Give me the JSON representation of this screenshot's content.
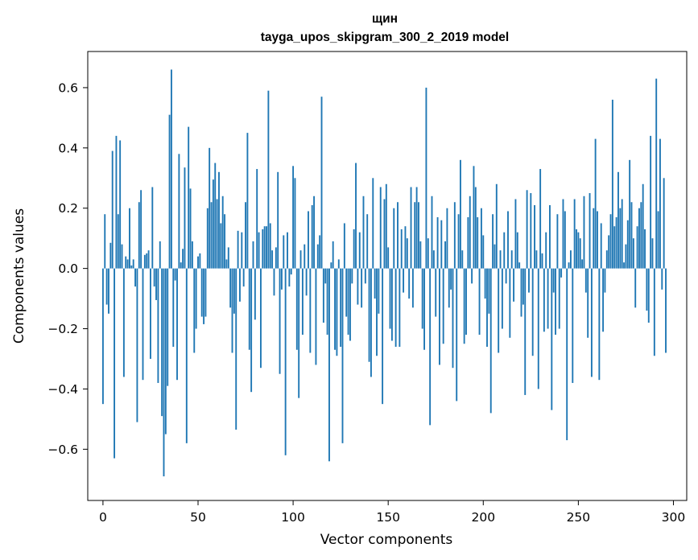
{
  "chart_data": {
    "type": "bar",
    "title": "щин",
    "subtitle": "tayga_upos_skipgram_300_2_2019 model",
    "xlabel": "Vector components",
    "ylabel": "Components values",
    "xlim": [
      -8,
      307
    ],
    "ylim": [
      -0.77,
      0.72
    ],
    "xticks": [
      0,
      50,
      100,
      150,
      200,
      250,
      300
    ],
    "xtick_labels": [
      "0",
      "50",
      "100",
      "150",
      "200",
      "250",
      "300"
    ],
    "yticks": [
      -0.6,
      -0.4,
      -0.2,
      0.0,
      0.2,
      0.4,
      0.6
    ],
    "ytick_labels": [
      "−0.6",
      "−0.4",
      "−0.2",
      "0.0",
      "0.2",
      "0.4",
      "0.6"
    ],
    "bar_color": "#1f77b4",
    "values": [
      -0.45,
      0.18,
      -0.12,
      -0.15,
      0.085,
      0.39,
      -0.63,
      0.44,
      0.18,
      0.425,
      0.08,
      -0.36,
      0.04,
      0.03,
      0.2,
      0.01,
      0.03,
      -0.06,
      -0.51,
      0.22,
      0.26,
      -0.37,
      0.045,
      0.05,
      0.06,
      -0.3,
      0.27,
      -0.06,
      -0.105,
      -0.38,
      0.09,
      -0.49,
      -0.69,
      -0.55,
      -0.39,
      0.51,
      0.66,
      -0.26,
      -0.04,
      -0.37,
      0.38,
      0.02,
      0.065,
      0.335,
      -0.58,
      0.47,
      0.265,
      0.09,
      -0.28,
      -0.2,
      0.04,
      0.05,
      -0.16,
      -0.185,
      -0.16,
      0.2,
      0.4,
      0.22,
      0.295,
      0.35,
      0.23,
      0.32,
      0.15,
      0.24,
      0.18,
      0.03,
      0.07,
      -0.13,
      -0.28,
      -0.15,
      -0.535,
      0.125,
      -0.11,
      0.12,
      -0.06,
      0.22,
      0.45,
      -0.27,
      -0.41,
      0.09,
      -0.17,
      0.33,
      0.12,
      -0.33,
      0.13,
      0.14,
      0.14,
      0.59,
      0.15,
      0.06,
      -0.09,
      0.07,
      0.32,
      -0.35,
      -0.07,
      0.11,
      -0.62,
      0.12,
      -0.06,
      -0.02,
      0.34,
      0.3,
      -0.27,
      -0.43,
      0.06,
      -0.22,
      0.08,
      -0.09,
      0.19,
      -0.28,
      0.21,
      0.24,
      -0.32,
      0.08,
      0.11,
      0.57,
      -0.18,
      -0.05,
      -0.22,
      -0.64,
      0.02,
      0.09,
      -0.27,
      -0.29,
      0.03,
      -0.26,
      -0.58,
      0.15,
      -0.16,
      -0.22,
      -0.24,
      -0.05,
      0.13,
      0.35,
      -0.12,
      0.12,
      -0.13,
      0.24,
      -0.05,
      0.18,
      -0.31,
      -0.36,
      0.3,
      -0.1,
      -0.29,
      -0.15,
      0.27,
      -0.45,
      0.23,
      0.28,
      0.07,
      -0.2,
      -0.24,
      0.2,
      -0.26,
      0.22,
      -0.26,
      0.13,
      -0.08,
      0.14,
      0.1,
      -0.1,
      0.27,
      -0.13,
      0.22,
      0.27,
      0.22,
      0.09,
      -0.2,
      -0.27,
      0.6,
      0.1,
      -0.52,
      0.24,
      0.06,
      -0.16,
      0.17,
      -0.32,
      0.16,
      -0.25,
      0.09,
      0.2,
      -0.13,
      -0.07,
      -0.33,
      0.22,
      -0.44,
      0.18,
      0.36,
      0.06,
      -0.25,
      -0.22,
      0.17,
      0.24,
      -0.05,
      0.34,
      0.27,
      0.17,
      -0.22,
      0.2,
      0.11,
      -0.1,
      -0.26,
      -0.15,
      -0.48,
      0.18,
      0.08,
      0.28,
      -0.28,
      0.06,
      -0.2,
      0.12,
      -0.05,
      0.19,
      -0.23,
      0.06,
      -0.11,
      0.23,
      0.12,
      0.02,
      -0.16,
      -0.12,
      -0.42,
      0.26,
      -0.08,
      0.25,
      -0.29,
      0.21,
      0.06,
      -0.4,
      0.33,
      0.05,
      -0.21,
      0.12,
      -0.2,
      0.21,
      -0.47,
      -0.08,
      -0.22,
      0.18,
      -0.2,
      -0.03,
      0.23,
      0.19,
      -0.57,
      0.02,
      0.06,
      -0.38,
      0.23,
      0.13,
      0.12,
      0.1,
      0.03,
      0.24,
      -0.08,
      -0.23,
      0.25,
      -0.36,
      0.2,
      0.43,
      0.19,
      -0.37,
      0.15,
      -0.21,
      -0.08,
      0.06,
      0.11,
      0.18,
      0.56,
      0.14,
      0.17,
      0.32,
      0.2,
      0.23,
      0.02,
      0.08,
      0.16,
      0.36,
      0.22,
      0.1,
      -0.13,
      0.14,
      0.2,
      0.22,
      0.28,
      0.13,
      -0.14,
      -0.18,
      0.44,
      0.1,
      -0.29,
      0.63,
      0.19,
      0.43,
      -0.07,
      0.3,
      -0.28
    ]
  }
}
